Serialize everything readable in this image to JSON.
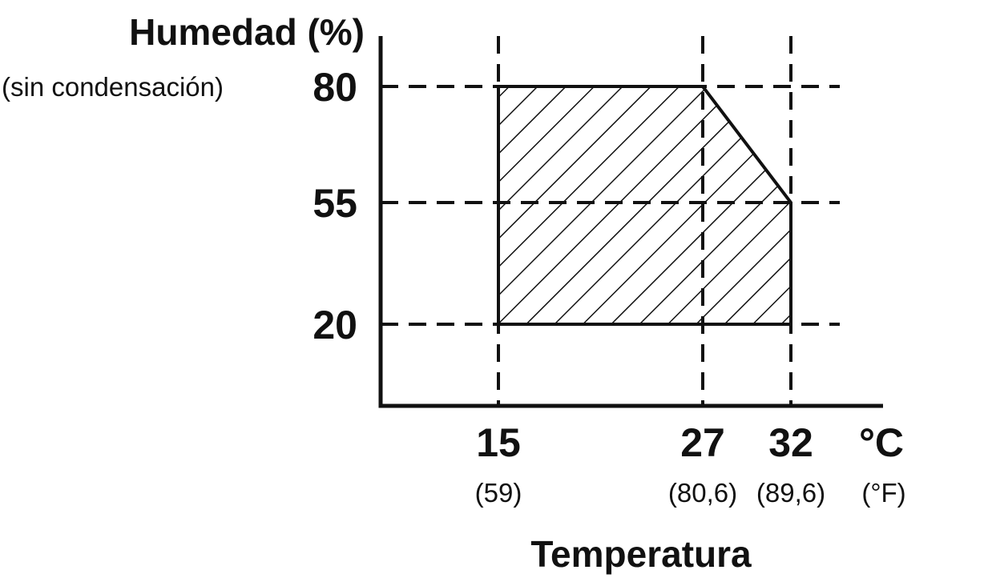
{
  "chart_data": {
    "type": "area",
    "ylabel": "Humedad (%)",
    "ylabel_sub": "(sin condensación)",
    "xlabel": "Temperatura",
    "x_unit": "°C",
    "x_unit_alt": "(°F)",
    "x_ticks": [
      {
        "value": 15,
        "label": "15",
        "alt": "(59)"
      },
      {
        "value": 27,
        "label": "27",
        "alt": "(80,6)"
      },
      {
        "value": 32,
        "label": "32",
        "alt": "(89,6)"
      }
    ],
    "y_ticks": [
      {
        "value": 80,
        "label": "80"
      },
      {
        "value": 55,
        "label": "55"
      },
      {
        "value": 20,
        "label": "20"
      }
    ],
    "region": [
      {
        "x": 15,
        "y": 20
      },
      {
        "x": 15,
        "y": 80
      },
      {
        "x": 27,
        "y": 80
      },
      {
        "x": 32,
        "y": 55
      },
      {
        "x": 32,
        "y": 20
      }
    ],
    "fill_pattern": "diagonal-hatch",
    "grid": "dashed at tick values",
    "colors": {
      "line": "#111111",
      "background": "#ffffff"
    }
  }
}
